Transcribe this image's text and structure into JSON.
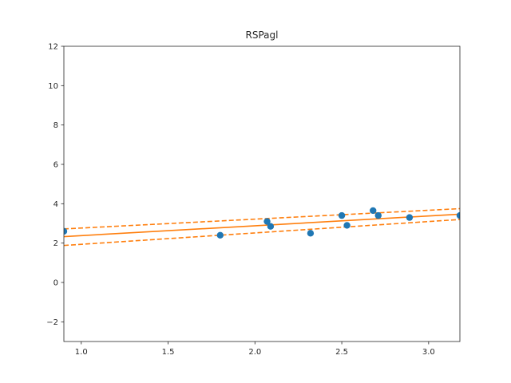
{
  "chart_data": {
    "type": "scatter",
    "title": "RSPagl",
    "xlabel": "",
    "ylabel": "",
    "xlim": [
      0.9,
      3.18
    ],
    "ylim": [
      -3,
      12
    ],
    "xticks": [
      1.0,
      1.5,
      2.0,
      2.5,
      3.0
    ],
    "xtick_labels": [
      "1.0",
      "1.5",
      "2.0",
      "2.5",
      "3.0"
    ],
    "yticks": [
      -2,
      0,
      2,
      4,
      6,
      8,
      10,
      12
    ],
    "ytick_labels": [
      "−2",
      "0",
      "2",
      "4",
      "6",
      "8",
      "10",
      "12"
    ],
    "grid": false,
    "points": {
      "color": "#1f77b4",
      "x": [
        0.9,
        1.8,
        2.07,
        2.09,
        2.32,
        2.5,
        2.53,
        2.68,
        2.71,
        2.89,
        3.18
      ],
      "y": [
        2.6,
        2.4,
        3.1,
        2.85,
        2.5,
        3.4,
        2.9,
        3.65,
        3.4,
        3.3,
        3.4
      ]
    },
    "fit_line": {
      "color": "#ff7f0e",
      "x": [
        0.9,
        3.18
      ],
      "y": [
        2.33,
        3.47
      ]
    },
    "confidence_band": {
      "color": "#ff7f0e",
      "upper": {
        "x": [
          0.9,
          3.18
        ],
        "y": [
          2.72,
          3.75
        ]
      },
      "lower": {
        "x": [
          0.9,
          3.18
        ],
        "y": [
          1.88,
          3.2
        ]
      }
    }
  }
}
